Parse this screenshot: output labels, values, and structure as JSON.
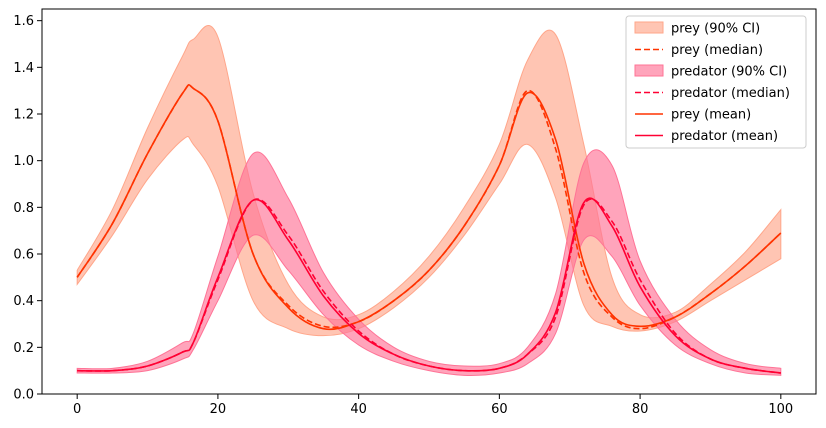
{
  "chart_data": {
    "type": "line",
    "title": "",
    "xlabel": "",
    "ylabel": "",
    "xlim": [
      -5,
      105
    ],
    "ylim": [
      0,
      1.65
    ],
    "x_ticks": [
      0,
      20,
      40,
      60,
      80,
      100
    ],
    "y_ticks": [
      0.0,
      0.2,
      0.4,
      0.6,
      0.8,
      1.0,
      1.2,
      1.4,
      1.6
    ],
    "x_tick_labels": [
      "0",
      "20",
      "40",
      "60",
      "80",
      "100"
    ],
    "y_tick_labels": [
      "0.0",
      "0.2",
      "0.4",
      "0.6",
      "0.8",
      "1.0",
      "1.2",
      "1.4",
      "1.6"
    ],
    "grid": false,
    "legend_position": "top-right",
    "colors": {
      "prey": "#ff3300",
      "predator": "#ff0033",
      "prey_band": "#ffa68a",
      "predator_band": "#ff7396"
    },
    "x": [
      0,
      5,
      10,
      15,
      16.5,
      20,
      25,
      30,
      35,
      40,
      45,
      50,
      55,
      60,
      64,
      68,
      72,
      76,
      80,
      85,
      90,
      95,
      100
    ],
    "series": [
      {
        "name": "prey (mean)",
        "kind": "line",
        "values": [
          0.5,
          0.73,
          1.03,
          1.29,
          1.31,
          1.17,
          0.6,
          0.37,
          0.28,
          0.31,
          0.4,
          0.53,
          0.72,
          0.98,
          1.29,
          1.09,
          0.56,
          0.34,
          0.29,
          0.33,
          0.43,
          0.55,
          0.69
        ]
      },
      {
        "name": "prey (median)",
        "kind": "dashed",
        "values": [
          0.5,
          0.73,
          1.03,
          1.29,
          1.31,
          1.17,
          0.6,
          0.38,
          0.29,
          0.31,
          0.4,
          0.53,
          0.72,
          0.98,
          1.3,
          1.05,
          0.52,
          0.33,
          0.28,
          0.33,
          0.43,
          0.55,
          0.69
        ]
      },
      {
        "name": "prey (90% CI)",
        "kind": "band",
        "lower": [
          0.47,
          0.68,
          0.92,
          1.09,
          1.07,
          0.89,
          0.4,
          0.28,
          0.25,
          0.28,
          0.37,
          0.5,
          0.68,
          0.9,
          1.07,
          0.84,
          0.38,
          0.29,
          0.27,
          0.31,
          0.4,
          0.49,
          0.58
        ],
        "upper": [
          0.53,
          0.79,
          1.14,
          1.45,
          1.52,
          1.53,
          0.86,
          0.47,
          0.33,
          0.34,
          0.44,
          0.59,
          0.8,
          1.07,
          1.43,
          1.54,
          1.07,
          0.5,
          0.34,
          0.35,
          0.47,
          0.61,
          0.79
        ]
      },
      {
        "name": "predator (mean)",
        "kind": "line",
        "values": [
          0.1,
          0.1,
          0.12,
          0.18,
          0.22,
          0.5,
          0.83,
          0.66,
          0.42,
          0.26,
          0.17,
          0.12,
          0.1,
          0.11,
          0.17,
          0.35,
          0.82,
          0.72,
          0.46,
          0.25,
          0.15,
          0.11,
          0.09
        ]
      },
      {
        "name": "predator (median)",
        "kind": "dashed",
        "values": [
          0.1,
          0.1,
          0.12,
          0.18,
          0.22,
          0.49,
          0.83,
          0.68,
          0.44,
          0.27,
          0.17,
          0.12,
          0.1,
          0.11,
          0.17,
          0.33,
          0.81,
          0.74,
          0.49,
          0.26,
          0.15,
          0.11,
          0.09
        ]
      },
      {
        "name": "predator (90% CI)",
        "kind": "band",
        "lower": [
          0.09,
          0.09,
          0.1,
          0.15,
          0.19,
          0.4,
          0.68,
          0.53,
          0.34,
          0.21,
          0.14,
          0.1,
          0.08,
          0.09,
          0.13,
          0.26,
          0.66,
          0.59,
          0.38,
          0.21,
          0.13,
          0.09,
          0.08
        ],
        "upper": [
          0.11,
          0.11,
          0.14,
          0.22,
          0.26,
          0.59,
          1.03,
          0.84,
          0.52,
          0.32,
          0.2,
          0.14,
          0.12,
          0.13,
          0.2,
          0.43,
          0.99,
          0.98,
          0.57,
          0.32,
          0.19,
          0.13,
          0.11
        ]
      }
    ],
    "legend": [
      {
        "label": "prey (90% CI)",
        "kind": "band",
        "color": "#ffa68a"
      },
      {
        "label": "prey (median)",
        "kind": "dashed",
        "color": "#ff3300"
      },
      {
        "label": "predator (90% CI)",
        "kind": "band",
        "color": "#ff7396"
      },
      {
        "label": "predator (median)",
        "kind": "dashed",
        "color": "#ff0033"
      },
      {
        "label": "prey (mean)",
        "kind": "line",
        "color": "#ff3300"
      },
      {
        "label": "predator (mean)",
        "kind": "line",
        "color": "#ff0033"
      }
    ]
  }
}
